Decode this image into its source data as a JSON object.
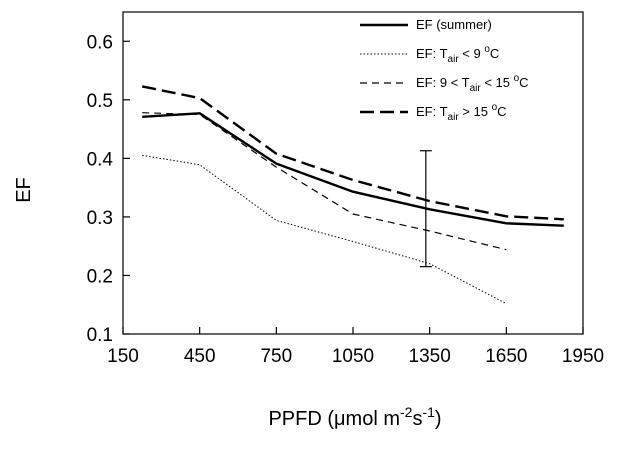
{
  "chart_data": {
    "type": "line",
    "xlabel": "PPFD (μmol m-2s-1)",
    "xlabel_parts": {
      "main": "PPFD (",
      "mu": "μ",
      "unit_a": "mol m",
      "exp_a": "-2",
      "unit_b": "s",
      "exp_b": "-1",
      "close": ")"
    },
    "ylabel": "EF",
    "xlim": [
      150,
      1950
    ],
    "ylim": [
      0.1,
      0.65
    ],
    "x_ticks": [
      150,
      450,
      750,
      1050,
      1350,
      1650,
      1950
    ],
    "x_tick_labels": [
      "150",
      "450",
      "750",
      "1050",
      "1350",
      "1650",
      "1950"
    ],
    "y_ticks": [
      0.1,
      0.2,
      0.3,
      0.4,
      0.5,
      0.6
    ],
    "y_tick_labels": [
      "0.1",
      "0.2",
      "0.3",
      "0.4",
      "0.5",
      "0.6"
    ],
    "legend_position": "top-right",
    "series": [
      {
        "name": "EF (summer)",
        "legend": {
          "main": "EF (summer)"
        },
        "style": "solid-thick",
        "x": [
          225,
          450,
          750,
          1050,
          1350,
          1650,
          1875
        ],
        "y": [
          0.471,
          0.477,
          0.391,
          0.343,
          0.313,
          0.289,
          0.285
        ]
      },
      {
        "name": "EF: Tair < 9 oC",
        "legend": {
          "pre": "EF: T",
          "sub": "air",
          "mid": " < 9 ",
          "sup": "o",
          "post": "C"
        },
        "style": "dotted",
        "x": [
          225,
          450,
          750,
          1050,
          1350,
          1650
        ],
        "y": [
          0.405,
          0.389,
          0.294,
          0.258,
          0.22,
          0.152
        ]
      },
      {
        "name": "EF: 9 < Tair < 15 oC",
        "legend": {
          "pre": "EF: 9 < T",
          "sub": "air",
          "mid": " < 15 ",
          "sup": "o",
          "post": "C"
        },
        "style": "dashed-short",
        "x": [
          225,
          450,
          750,
          1050,
          1350,
          1650
        ],
        "y": [
          0.478,
          0.475,
          0.385,
          0.305,
          0.276,
          0.244
        ]
      },
      {
        "name": "EF: Tair > 15 oC",
        "legend": {
          "pre": "EF: T",
          "sub": "air",
          "mid": " > 15 ",
          "sup": "o",
          "post": "C"
        },
        "style": "dashed-long",
        "x": [
          225,
          450,
          750,
          1050,
          1350,
          1650,
          1875
        ],
        "y": [
          0.523,
          0.503,
          0.408,
          0.363,
          0.327,
          0.301,
          0.296
        ]
      }
    ],
    "error_bar": {
      "x": 1335,
      "y_low": 0.215,
      "y_high": 0.413
    }
  }
}
